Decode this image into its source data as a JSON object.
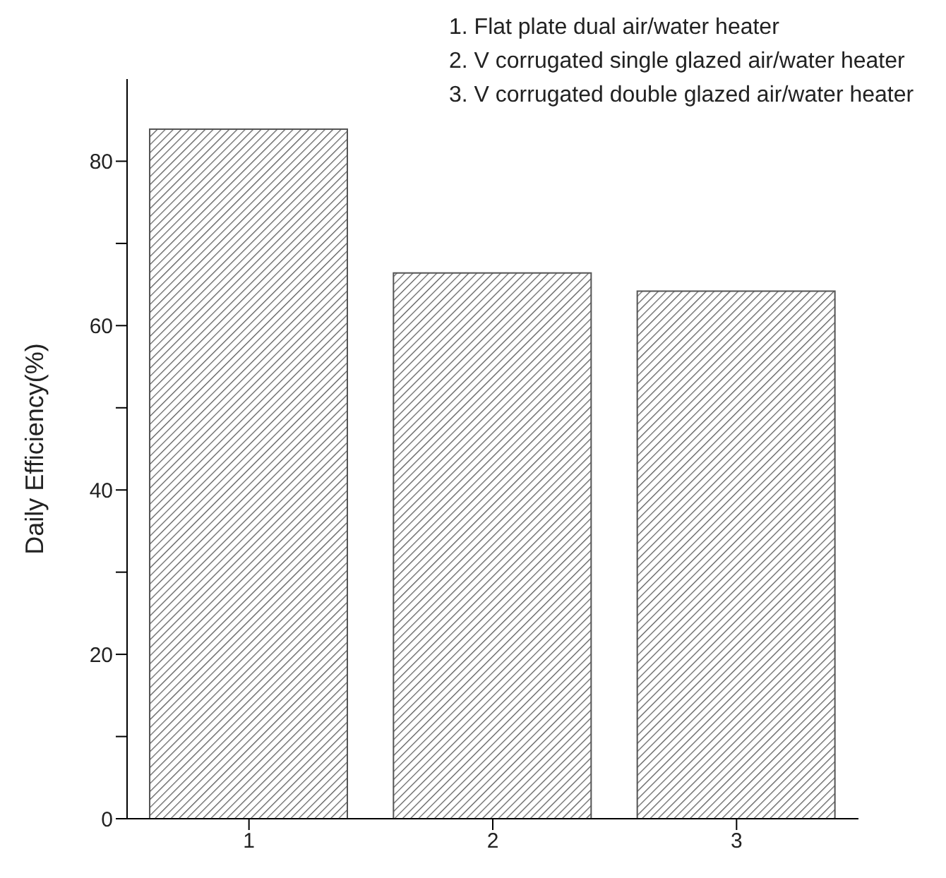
{
  "chart_data": {
    "type": "bar",
    "ylabel": "Daily Efficiency(%)",
    "categories": [
      "1",
      "2",
      "3"
    ],
    "values": [
      83.9,
      66.4,
      64.2
    ],
    "color": "#555555",
    "ylim": [
      0,
      90
    ],
    "yticks": [
      0,
      {
        "value": 10,
        "label": null
      },
      20,
      {
        "value": 30,
        "label": null
      },
      40,
      {
        "value": 50,
        "label": null
      },
      60,
      {
        "value": 70,
        "label": null
      },
      80
    ],
    "grid": false,
    "annotations": [
      "1. Flat plate dual air/water heater",
      "2. V corrugated single glazed air/water heater",
      "3. V corrugated double glazed air/water heater"
    ]
  }
}
